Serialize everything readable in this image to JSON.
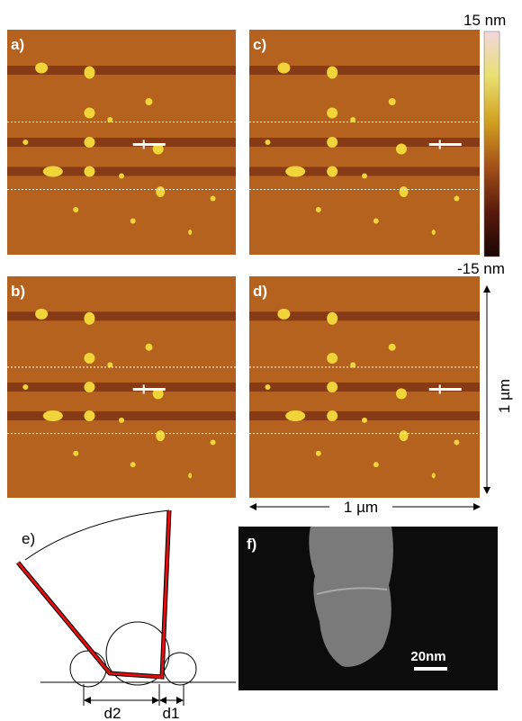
{
  "panels": [
    {
      "label": "a)"
    },
    {
      "label": "b)"
    },
    {
      "label": "c)"
    },
    {
      "label": "d)"
    }
  ],
  "colorbar": {
    "max": "15 nm",
    "min": "-15 nm"
  },
  "scale": {
    "horizontal": "1 µm",
    "vertical": "1 µm"
  },
  "diagram": {
    "label": "e)",
    "d2": "d2",
    "d1": "d1"
  },
  "sem": {
    "label": "f)",
    "scale": "20nm"
  }
}
